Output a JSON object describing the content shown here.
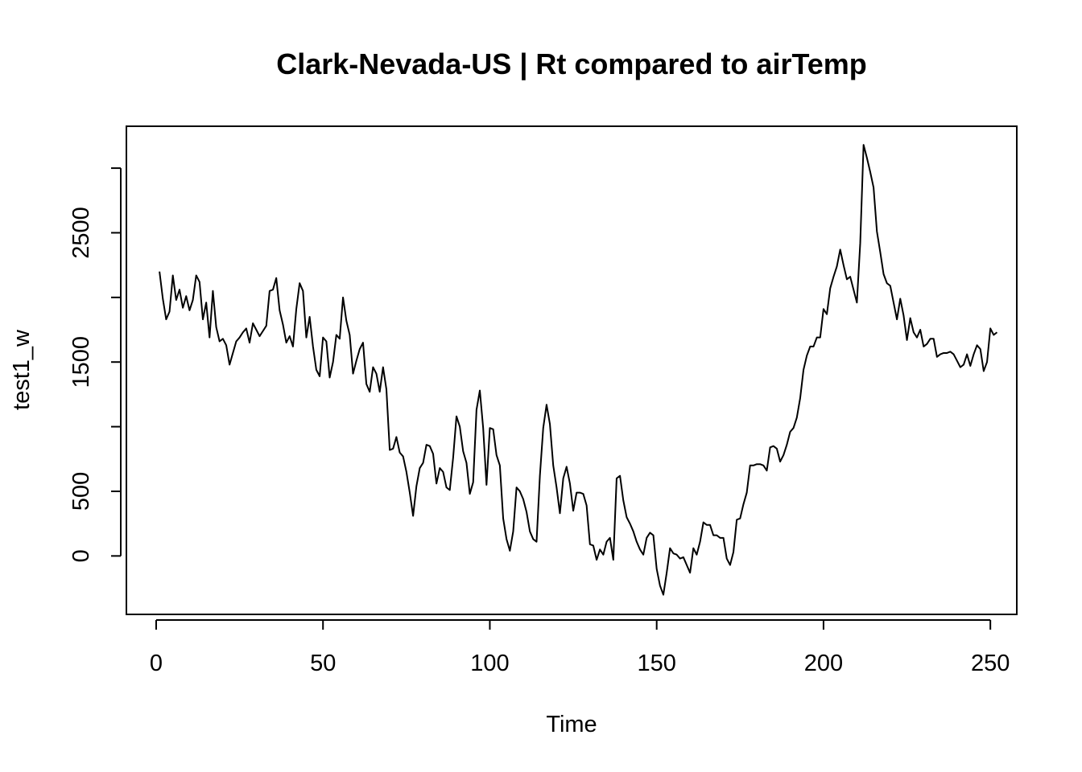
{
  "chart_data": {
    "type": "line",
    "title": "Clark-Nevada-US | Rt compared to airTemp",
    "xlabel": "Time",
    "ylabel": "test1_w",
    "xlim": [
      -8.92,
      257.92
    ],
    "ylim": [
      -452,
      3324
    ],
    "x_ticks": [
      0,
      50,
      100,
      150,
      200,
      250
    ],
    "y_ticks": [
      0,
      500,
      1000,
      1500,
      2000,
      2500,
      3000
    ],
    "y_tick_labels": [
      "0",
      "500",
      "",
      "1500",
      "",
      "2500",
      ""
    ],
    "x_start": 1,
    "series": [
      {
        "values": [
          2200,
          1990,
          1830,
          1890,
          2170,
          1980,
          2060,
          1920,
          2010,
          1900,
          1980,
          2170,
          2120,
          1830,
          1960,
          1690,
          2050,
          1770,
          1660,
          1680,
          1630,
          1480,
          1570,
          1660,
          1690,
          1730,
          1760,
          1650,
          1800,
          1750,
          1700,
          1740,
          1780,
          2050,
          2060,
          2150,
          1900,
          1790,
          1650,
          1700,
          1620,
          1910,
          2110,
          2050,
          1690,
          1850,
          1620,
          1440,
          1390,
          1690,
          1660,
          1380,
          1500,
          1710,
          1680,
          2000,
          1820,
          1710,
          1410,
          1510,
          1600,
          1650,
          1330,
          1270,
          1460,
          1410,
          1270,
          1460,
          1290,
          820,
          830,
          920,
          800,
          770,
          650,
          490,
          310,
          540,
          680,
          720,
          860,
          850,
          790,
          560,
          680,
          650,
          530,
          510,
          760,
          1080,
          1000,
          810,
          720,
          480,
          570,
          1130,
          1280,
          990,
          550,
          990,
          980,
          780,
          700,
          290,
          130,
          40,
          190,
          530,
          500,
          440,
          340,
          190,
          130,
          110,
          620,
          990,
          1170,
          1020,
          700,
          530,
          330,
          600,
          690,
          560,
          350,
          490,
          490,
          480,
          390,
          90,
          80,
          -30,
          50,
          10,
          110,
          140,
          -30,
          600,
          620,
          430,
          300,
          250,
          190,
          110,
          50,
          10,
          140,
          180,
          160,
          -100,
          -230,
          -300,
          -130,
          60,
          20,
          10,
          -20,
          -10,
          -70,
          -130,
          60,
          10,
          110,
          260,
          240,
          240,
          160,
          160,
          140,
          140,
          -20,
          -70,
          30,
          280,
          290,
          400,
          490,
          700,
          700,
          710,
          710,
          700,
          660,
          840,
          850,
          830,
          730,
          780,
          860,
          960,
          990,
          1070,
          1220,
          1440,
          1550,
          1620,
          1620,
          1690,
          1690,
          1910,
          1870,
          2070,
          2160,
          2240,
          2370,
          2250,
          2140,
          2160,
          2060,
          1960,
          2420,
          3180,
          3080,
          2970,
          2850,
          2510,
          2350,
          2180,
          2110,
          2090,
          1960,
          1830,
          1990,
          1860,
          1670,
          1840,
          1730,
          1690,
          1750,
          1620,
          1640,
          1680,
          1680,
          1540,
          1560,
          1570,
          1570,
          1580,
          1560,
          1510,
          1460,
          1480,
          1560,
          1470,
          1560,
          1630,
          1600,
          1430,
          1500,
          1760,
          1710,
          1730
        ]
      }
    ]
  }
}
